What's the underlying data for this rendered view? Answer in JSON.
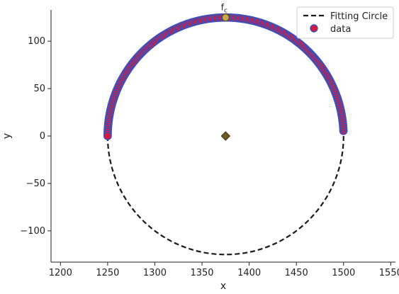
{
  "chart_data": {
    "type": "scatter",
    "title": "",
    "xlabel": "x",
    "ylabel": "y",
    "xlim": [
      1190,
      1555
    ],
    "ylim": [
      -133,
      133
    ],
    "xticks": [
      1200,
      1250,
      1300,
      1350,
      1400,
      1450,
      1500,
      1550
    ],
    "yticks": [
      -100,
      -50,
      0,
      50,
      100
    ],
    "grid": false,
    "legend_position": "top-right",
    "fitting_circle": {
      "name": "Fitting Circle",
      "style": "dashed",
      "color": "#1a1a1a",
      "center": [
        1375,
        0
      ],
      "radius": 125
    },
    "data_series": {
      "name": "data",
      "color": "#d8193f",
      "edge_color": "#3d4fb8",
      "arc_start_deg": 2.5,
      "arc_end_deg": 180,
      "point_count": 180
    },
    "center_marker": {
      "x": 1375,
      "y": 0,
      "shape": "diamond",
      "color": "#6b5d1e"
    },
    "fc_marker": {
      "x": 1375,
      "y": 125,
      "label": "f",
      "label_sub": "c",
      "color": "#c8a84a"
    }
  }
}
